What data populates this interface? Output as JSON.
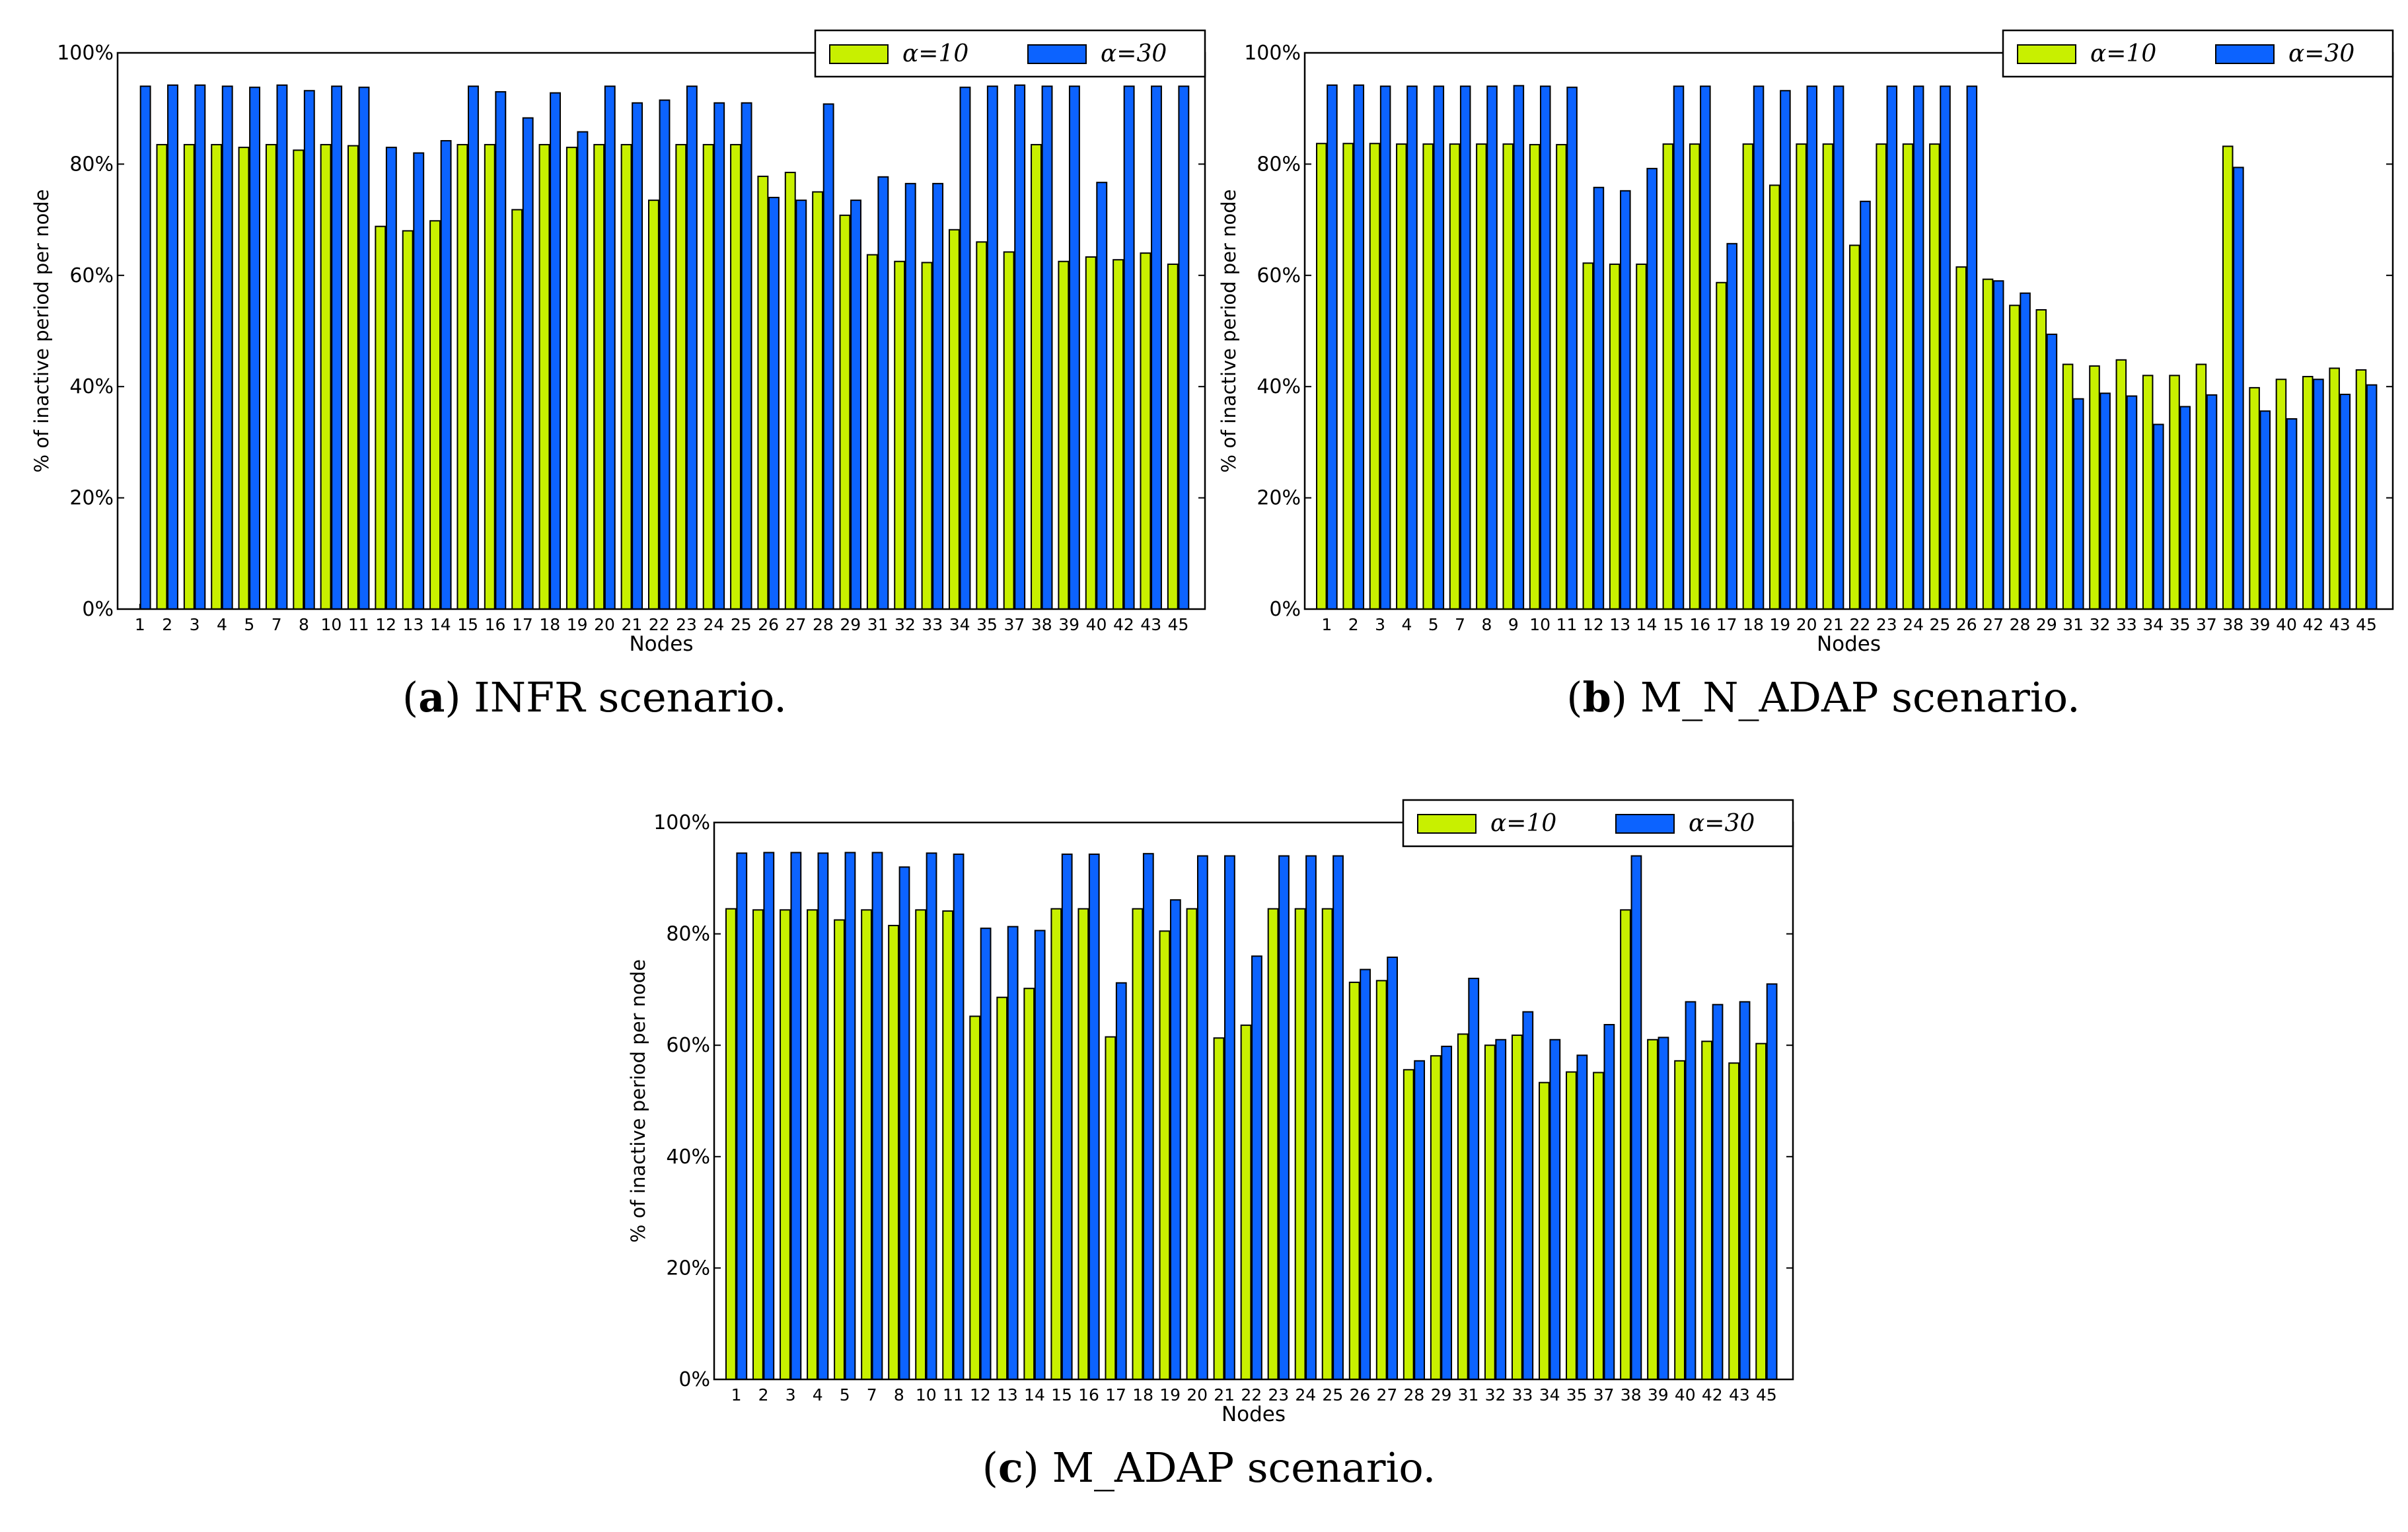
{
  "chart_data": [
    {
      "type": "bar",
      "panel_letter": "a",
      "caption": "INFR scenario.",
      "xlabel": "Nodes",
      "ylabel": "% of inactive period per node",
      "ylim": [
        0,
        100
      ],
      "yticks": [
        "0%",
        "20%",
        "40%",
        "60%",
        "80%",
        "100%"
      ],
      "legend_position": "top-right",
      "categories": [
        "1",
        "2",
        "3",
        "4",
        "5",
        "7",
        "8",
        "10",
        "11",
        "12",
        "13",
        "14",
        "15",
        "16",
        "17",
        "18",
        "19",
        "20",
        "21",
        "22",
        "23",
        "24",
        "25",
        "26",
        "27",
        "28",
        "29",
        "31",
        "32",
        "33",
        "34",
        "35",
        "37",
        "38",
        "39",
        "40",
        "42",
        "43",
        "45"
      ],
      "series": [
        {
          "name": "α=10",
          "color": "#c8f000",
          "values": [
            0,
            83.5,
            83.5,
            83.5,
            83.0,
            83.5,
            82.5,
            83.5,
            83.3,
            68.8,
            68.0,
            69.8,
            83.5,
            83.5,
            71.8,
            83.5,
            83.0,
            83.5,
            83.5,
            73.5,
            83.5,
            83.5,
            83.5,
            77.8,
            78.5,
            75.0,
            70.8,
            63.7,
            62.5,
            62.3,
            68.2,
            66.0,
            64.2,
            83.5,
            62.5,
            63.3,
            62.8,
            64.0,
            62.0
          ]
        },
        {
          "name": "α=30",
          "color": "#0c63ff",
          "values": [
            94.0,
            94.2,
            94.2,
            94.0,
            93.8,
            94.2,
            93.2,
            94.0,
            93.8,
            83.0,
            82.0,
            84.2,
            94.0,
            93.0,
            88.3,
            92.8,
            85.8,
            94.0,
            91.0,
            91.5,
            94.0,
            91.0,
            91.0,
            74.0,
            73.5,
            90.8,
            73.5,
            77.7,
            76.5,
            76.5,
            93.8,
            94.0,
            94.2,
            94.0,
            94.0,
            76.7,
            94.0,
            94.0,
            94.0
          ]
        }
      ]
    },
    {
      "type": "bar",
      "panel_letter": "b",
      "caption": "M_N_ADAP scenario.",
      "xlabel": "Nodes",
      "ylabel": "% of inactive period per node",
      "ylim": [
        0,
        100
      ],
      "yticks": [
        "0%",
        "20%",
        "40%",
        "60%",
        "80%",
        "100%"
      ],
      "legend_position": "top-right",
      "categories": [
        "1",
        "2",
        "3",
        "4",
        "5",
        "7",
        "8",
        "9",
        "10",
        "11",
        "12",
        "13",
        "14",
        "15",
        "16",
        "17",
        "18",
        "19",
        "20",
        "21",
        "22",
        "23",
        "24",
        "25",
        "26",
        "27",
        "28",
        "29",
        "31",
        "32",
        "33",
        "34",
        "35",
        "37",
        "38",
        "39",
        "40",
        "42",
        "43",
        "45"
      ],
      "series": [
        {
          "name": "α=10",
          "color": "#c8f000",
          "values": [
            83.7,
            83.7,
            83.7,
            83.6,
            83.6,
            83.6,
            83.6,
            83.6,
            83.5,
            83.5,
            62.2,
            62.0,
            62.0,
            83.6,
            83.6,
            58.7,
            83.6,
            76.2,
            83.6,
            83.6,
            65.4,
            83.6,
            83.6,
            83.6,
            61.5,
            59.3,
            54.6,
            53.8,
            44.0,
            43.7,
            44.8,
            42.0,
            42.0,
            44.0,
            83.2,
            39.8,
            41.3,
            41.8,
            43.3,
            43.0
          ]
        },
        {
          "name": "α=30",
          "color": "#0c63ff",
          "values": [
            94.2,
            94.2,
            94.0,
            94.0,
            94.0,
            94.0,
            94.0,
            94.1,
            94.0,
            93.8,
            75.8,
            75.2,
            79.2,
            94.0,
            94.0,
            65.7,
            94.0,
            93.2,
            94.0,
            94.0,
            73.3,
            94.0,
            94.0,
            94.0,
            94.0,
            59.0,
            56.8,
            49.4,
            37.8,
            38.8,
            38.3,
            33.2,
            36.4,
            38.5,
            79.4,
            35.6,
            34.2,
            41.3,
            38.6,
            40.3
          ]
        }
      ]
    },
    {
      "type": "bar",
      "panel_letter": "c",
      "caption": "M_ADAP scenario.",
      "xlabel": "Nodes",
      "ylabel": "% of inactive period per node",
      "ylim": [
        0,
        100
      ],
      "yticks": [
        "0%",
        "20%",
        "40%",
        "60%",
        "80%",
        "100%"
      ],
      "legend_position": "top-right",
      "categories": [
        "1",
        "2",
        "3",
        "4",
        "5",
        "7",
        "8",
        "10",
        "11",
        "12",
        "13",
        "14",
        "15",
        "16",
        "17",
        "18",
        "19",
        "20",
        "21",
        "22",
        "23",
        "24",
        "25",
        "26",
        "27",
        "28",
        "29",
        "31",
        "32",
        "33",
        "34",
        "35",
        "37",
        "38",
        "39",
        "40",
        "42",
        "43",
        "45"
      ],
      "series": [
        {
          "name": "α=10",
          "color": "#c8f000",
          "values": [
            84.5,
            84.3,
            84.3,
            84.3,
            82.5,
            84.3,
            81.5,
            84.3,
            84.1,
            65.2,
            68.6,
            70.2,
            84.5,
            84.5,
            61.5,
            84.5,
            80.5,
            84.5,
            61.3,
            63.6,
            84.5,
            84.5,
            84.5,
            71.3,
            71.6,
            55.6,
            58.1,
            62.0,
            60.0,
            61.8,
            53.3,
            55.2,
            55.1,
            84.3,
            61.0,
            57.2,
            60.7,
            56.8,
            60.3
          ]
        },
        {
          "name": "α=30",
          "color": "#0c63ff",
          "values": [
            94.5,
            94.6,
            94.6,
            94.5,
            94.6,
            94.6,
            92.0,
            94.5,
            94.3,
            81.0,
            81.3,
            80.6,
            94.3,
            94.3,
            71.2,
            94.4,
            86.1,
            94.0,
            94.0,
            76.0,
            94.0,
            94.0,
            94.0,
            73.6,
            75.8,
            57.2,
            59.8,
            72.0,
            61.0,
            66.0,
            61.0,
            58.2,
            63.7,
            94.0,
            61.4,
            67.8,
            67.3,
            67.8,
            71.0
          ]
        }
      ]
    }
  ]
}
